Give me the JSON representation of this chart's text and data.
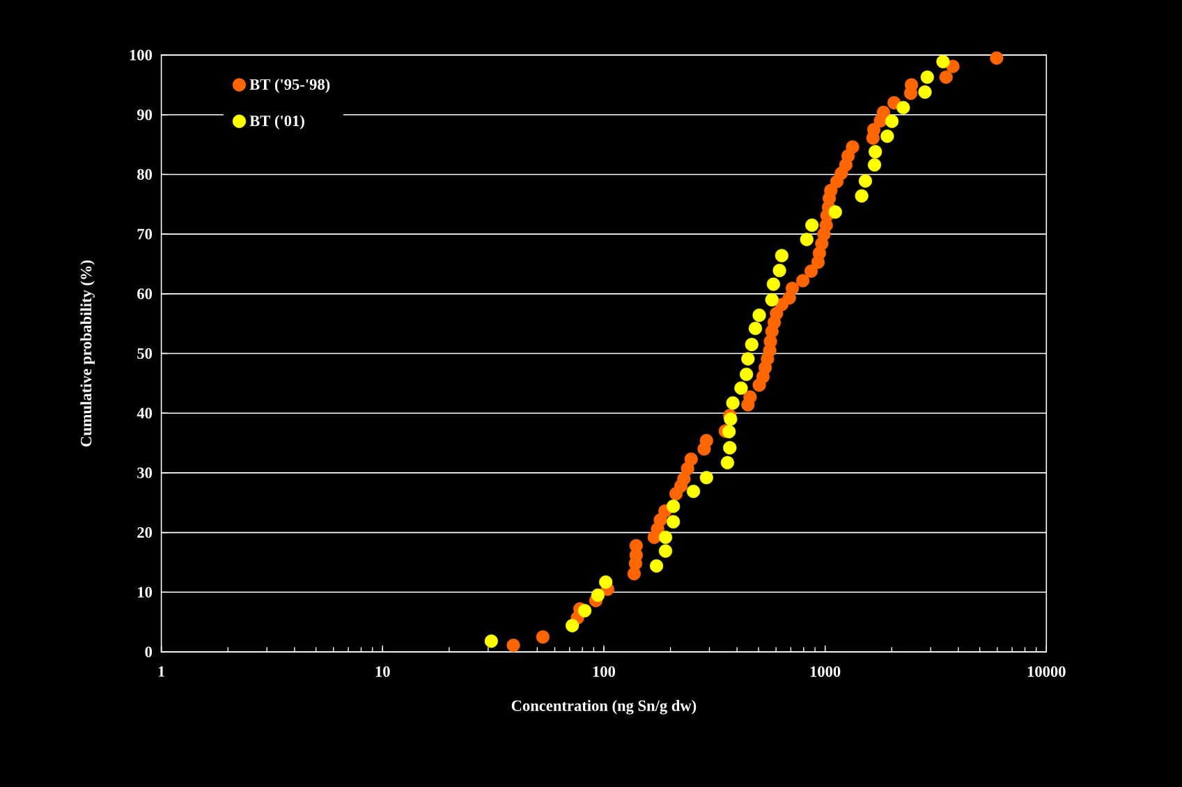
{
  "chart_data": {
    "type": "scatter",
    "xlabel": "Concentration (ng Sn/g dw)",
    "ylabel": "Cumulative probability (%)",
    "log": "x",
    "xlim": [
      1,
      10000
    ],
    "xticks": [
      1,
      10,
      100,
      1000,
      10000
    ],
    "ylim": [
      0,
      100
    ],
    "yticks": [
      0,
      10,
      20,
      30,
      40,
      50,
      60,
      70,
      80,
      90,
      100
    ],
    "grid": "y",
    "legend": "top left",
    "marker": "circle",
    "series": [
      {
        "name": "BT ('95-'98)",
        "color": "#ff6600",
        "x": [
          39,
          53,
          76,
          78,
          92,
          104,
          137,
          139,
          140,
          140,
          169,
          175,
          180,
          189,
          212,
          223,
          230,
          239,
          248,
          284,
          291,
          354,
          371,
          448,
          458,
          504,
          524,
          536,
          549,
          562,
          566,
          575,
          589,
          603,
          637,
          689,
          711,
          793,
          865,
          929,
          942,
          966,
          988,
          1012,
          1020,
          1036,
          1044,
          1061,
          1130,
          1184,
          1241,
          1270,
          1331,
          1645,
          1660,
          1780,
          1836,
          2050,
          2437,
          2456,
          3520,
          3780,
          5960
        ],
        "values": [
          1.1,
          2.5,
          5.7,
          7.2,
          8.6,
          10.5,
          13.1,
          14.8,
          16.2,
          17.8,
          19.2,
          20.6,
          22.1,
          23.6,
          26.5,
          27.8,
          29.0,
          30.7,
          32.3,
          34.0,
          35.4,
          37.0,
          39.6,
          41.4,
          42.7,
          44.7,
          46.1,
          47.6,
          49.1,
          50.5,
          52.0,
          53.7,
          55.2,
          56.7,
          58.2,
          59.3,
          60.9,
          62.2,
          63.8,
          65.3,
          66.8,
          68.4,
          70.0,
          71.5,
          73.1,
          74.5,
          76.0,
          77.3,
          78.8,
          80.2,
          81.6,
          83.1,
          84.6,
          86.1,
          87.5,
          89.0,
          90.4,
          92.0,
          93.6,
          95.0,
          96.3,
          98.1,
          99.5
        ]
      },
      {
        "name": "BT ('01)",
        "color": "#ffff00",
        "x": [
          31,
          72,
          82,
          94,
          102,
          173,
          190,
          190,
          206,
          206,
          254,
          291,
          362,
          371,
          368,
          374,
          383,
          417,
          441,
          448,
          466,
          484,
          504,
          575,
          584,
          622,
          637,
          826,
          872,
          1112,
          1463,
          1521,
          1672,
          1686,
          1910,
          2004,
          2255,
          2827,
          2896,
          3412
        ],
        "values": [
          1.8,
          4.4,
          6.9,
          9.5,
          11.7,
          14.4,
          16.9,
          19.2,
          21.8,
          24.4,
          26.9,
          29.2,
          31.7,
          34.2,
          36.9,
          39.0,
          41.7,
          44.2,
          46.5,
          49.1,
          51.5,
          54.2,
          56.4,
          59.0,
          61.6,
          63.9,
          66.4,
          69.1,
          71.5,
          73.7,
          76.4,
          78.9,
          81.6,
          83.8,
          86.4,
          88.9,
          91.2,
          93.8,
          96.3,
          98.9
        ]
      }
    ]
  }
}
